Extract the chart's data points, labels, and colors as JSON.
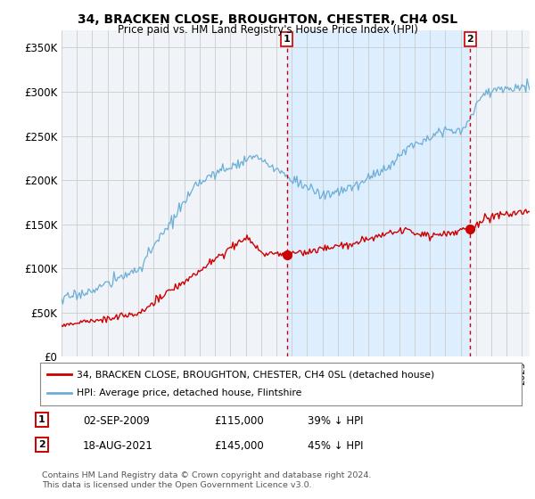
{
  "title": "34, BRACKEN CLOSE, BROUGHTON, CHESTER, CH4 0SL",
  "subtitle": "Price paid vs. HM Land Registry's House Price Index (HPI)",
  "ylabel_ticks": [
    "£0",
    "£50K",
    "£100K",
    "£150K",
    "£200K",
    "£250K",
    "£300K",
    "£350K"
  ],
  "ytick_values": [
    0,
    50000,
    100000,
    150000,
    200000,
    250000,
    300000,
    350000
  ],
  "ylim": [
    0,
    370000
  ],
  "xlim_start": 1995.0,
  "xlim_end": 2025.5,
  "sale1_date": 2009.67,
  "sale1_price": 115000,
  "sale2_date": 2021.62,
  "sale2_price": 145000,
  "legend_line1": "34, BRACKEN CLOSE, BROUGHTON, CHESTER, CH4 0SL (detached house)",
  "legend_line2": "HPI: Average price, detached house, Flintshire",
  "footer": "Contains HM Land Registry data © Crown copyright and database right 2024.\nThis data is licensed under the Open Government Licence v3.0.",
  "hpi_color": "#6baed6",
  "price_color": "#cc0000",
  "marker_color": "#cc0000",
  "dashed_color": "#cc0000",
  "plot_bg_color": "#f0f4f8",
  "shade_color": "#ddeeff",
  "grid_color": "#cccccc"
}
